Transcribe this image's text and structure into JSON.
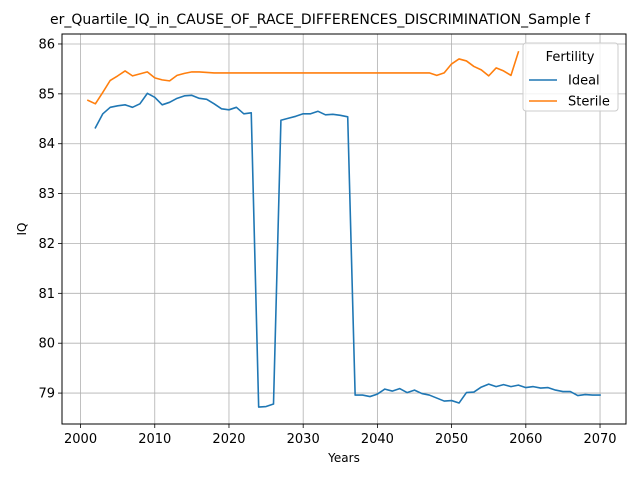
{
  "chart_data": {
    "type": "line",
    "title": "er_Quartile_IQ_in_CAUSE_OF_RACE_DIFFERENCES_DISCRIMINATION_Sample f",
    "xlabel": "Years",
    "ylabel": "IQ",
    "xlim": [
      1997.5,
      2073.5
    ],
    "ylim": [
      78.38,
      86.2
    ],
    "xticks": [
      2000,
      2010,
      2020,
      2030,
      2040,
      2050,
      2060,
      2070
    ],
    "yticks": [
      79,
      80,
      81,
      82,
      83,
      84,
      85,
      86
    ],
    "grid": true,
    "legend": {
      "title": "Fertility",
      "position": "top-right"
    },
    "series": [
      {
        "name": "Ideal",
        "color": "#1f77b4",
        "x": [
          2002,
          2003,
          2004,
          2005,
          2006,
          2007,
          2008,
          2009,
          2010,
          2011,
          2012,
          2013,
          2014,
          2015,
          2016,
          2017,
          2018,
          2019,
          2020,
          2021,
          2022,
          2023,
          2024,
          2025,
          2026,
          2027,
          2028,
          2029,
          2030,
          2031,
          2032,
          2033,
          2034,
          2035,
          2036,
          2037,
          2038,
          2039,
          2040,
          2041,
          2042,
          2043,
          2044,
          2045,
          2046,
          2047,
          2048,
          2049,
          2050,
          2051,
          2052,
          2053,
          2054,
          2055,
          2056,
          2057,
          2058,
          2059,
          2060,
          2061,
          2062,
          2063,
          2064,
          2065,
          2066,
          2067,
          2068,
          2069,
          2070
        ],
        "y": [
          84.32,
          84.6,
          84.73,
          84.76,
          84.78,
          84.73,
          84.8,
          85.01,
          84.93,
          84.78,
          84.83,
          84.91,
          84.96,
          84.97,
          84.91,
          84.89,
          84.8,
          84.7,
          84.68,
          84.73,
          84.6,
          84.62,
          78.72,
          78.73,
          78.78,
          84.47,
          84.51,
          84.55,
          84.6,
          84.6,
          84.65,
          84.58,
          84.59,
          84.57,
          84.54,
          78.96,
          78.96,
          78.93,
          78.98,
          79.08,
          79.04,
          79.09,
          79.01,
          79.06,
          78.99,
          78.96,
          78.9,
          78.84,
          78.85,
          78.8,
          79.01,
          79.02,
          79.12,
          79.18,
          79.13,
          79.17,
          79.13,
          79.16,
          79.11,
          79.13,
          79.1,
          79.11,
          79.06,
          79.03,
          79.03,
          78.95,
          78.97,
          78.96,
          78.96
        ]
      },
      {
        "name": "Sterile",
        "color": "#ff7f0e",
        "x": [
          2001,
          2002,
          2003,
          2004,
          2005,
          2006,
          2007,
          2008,
          2009,
          2010,
          2011,
          2012,
          2013,
          2014,
          2015,
          2016,
          2017,
          2018,
          2019,
          2020,
          2021,
          2022,
          2023,
          2024,
          2025,
          2026,
          2027,
          2028,
          2029,
          2030,
          2031,
          2032,
          2033,
          2034,
          2035,
          2036,
          2037,
          2038,
          2039,
          2040,
          2041,
          2042,
          2043,
          2044,
          2045,
          2046,
          2047,
          2048,
          2049,
          2050,
          2051,
          2052,
          2053,
          2054,
          2055,
          2056,
          2057,
          2058,
          2059
        ],
        "y": [
          84.87,
          84.8,
          85.03,
          85.27,
          85.36,
          85.46,
          85.36,
          85.4,
          85.44,
          85.32,
          85.28,
          85.26,
          85.37,
          85.41,
          85.44,
          85.44,
          85.43,
          85.42,
          85.42,
          85.42,
          85.42,
          85.42,
          85.42,
          85.42,
          85.42,
          85.42,
          85.42,
          85.42,
          85.42,
          85.42,
          85.42,
          85.42,
          85.42,
          85.42,
          85.42,
          85.42,
          85.42,
          85.42,
          85.42,
          85.42,
          85.42,
          85.42,
          85.42,
          85.42,
          85.42,
          85.42,
          85.42,
          85.37,
          85.42,
          85.6,
          85.7,
          85.66,
          85.55,
          85.48,
          85.36,
          85.52,
          85.46,
          85.37,
          85.84
        ]
      }
    ]
  }
}
